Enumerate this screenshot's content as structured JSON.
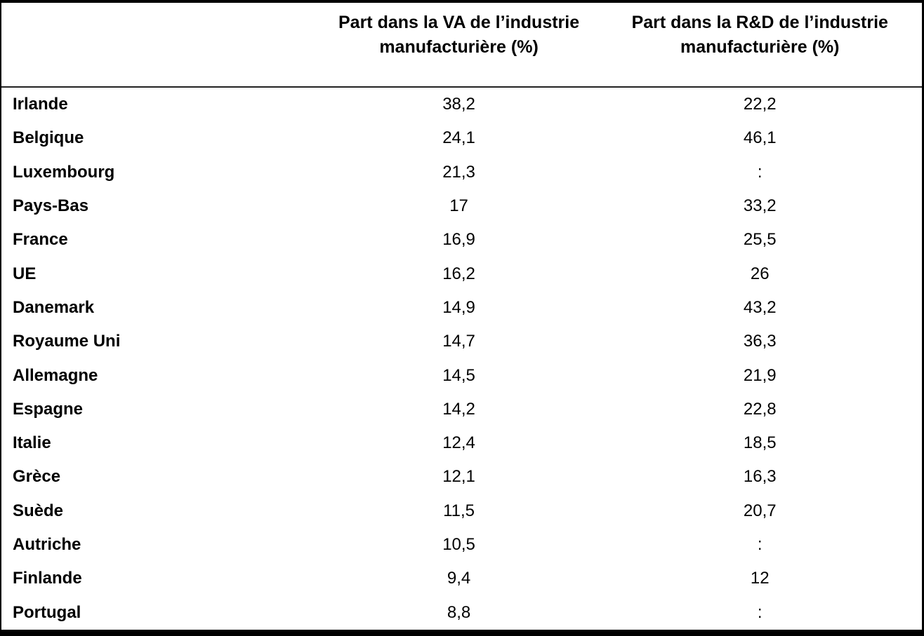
{
  "table": {
    "headers": {
      "country": "",
      "va": "Part dans la VA de l’industrie\nmanufacturière (%)",
      "rd": "Part dans la R&D de l’industrie\nmanufacturière (%)"
    }
  },
  "chart_data": {
    "type": "table",
    "columns": [
      "",
      "Part dans la VA de l’industrie manufacturière (%)",
      "Part dans la R&D de l’industrie manufacturière (%)"
    ],
    "missing_value_symbol": ":",
    "rows": [
      {
        "country": "Irlande",
        "va": "38,2",
        "rd": "22,2"
      },
      {
        "country": "Belgique",
        "va": "24,1",
        "rd": "46,1"
      },
      {
        "country": "Luxembourg",
        "va": "21,3",
        "rd": ":"
      },
      {
        "country": "Pays-Bas",
        "va": "17",
        "rd": "33,2"
      },
      {
        "country": "France",
        "va": "16,9",
        "rd": "25,5"
      },
      {
        "country": "UE",
        "va": "16,2",
        "rd": "26"
      },
      {
        "country": "Danemark",
        "va": "14,9",
        "rd": "43,2"
      },
      {
        "country": "Royaume Uni",
        "va": "14,7",
        "rd": "36,3"
      },
      {
        "country": "Allemagne",
        "va": "14,5",
        "rd": "21,9"
      },
      {
        "country": "Espagne",
        "va": "14,2",
        "rd": "22,8"
      },
      {
        "country": "Italie",
        "va": "12,4",
        "rd": "18,5"
      },
      {
        "country": "Grèce",
        "va": "12,1",
        "rd": "16,3"
      },
      {
        "country": "Suède",
        "va": "11,5",
        "rd": "20,7"
      },
      {
        "country": "Autriche",
        "va": "10,5",
        "rd": ":"
      },
      {
        "country": "Finlande",
        "va": "9,4",
        "rd": "12"
      },
      {
        "country": "Portugal",
        "va": "8,8",
        "rd": ":"
      }
    ]
  },
  "colors": {
    "text": "#000000",
    "background": "#ffffff",
    "border": "#000000"
  }
}
